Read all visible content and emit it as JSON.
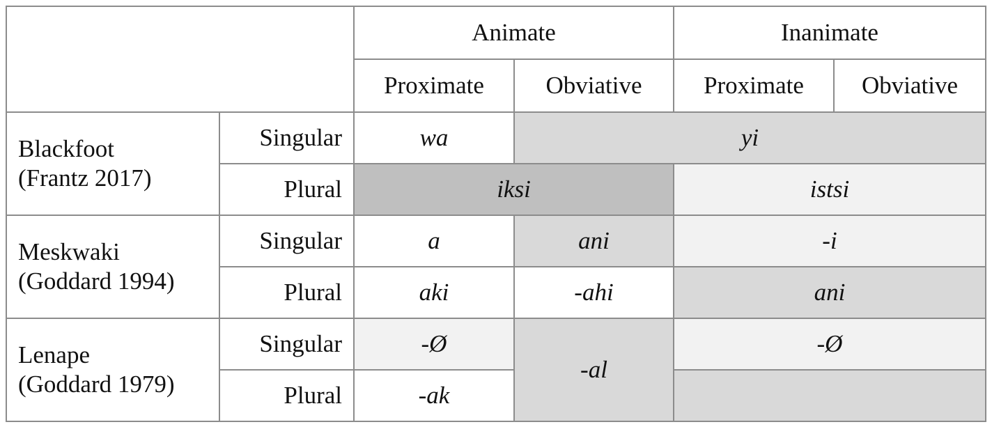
{
  "header": {
    "animate": "Animate",
    "inanimate": "Inanimate",
    "proximate": "Proximate",
    "obviative": "Obviative"
  },
  "languages": [
    {
      "name": "Blackfoot",
      "source": "(Frantz 2017)",
      "singular_label": "Singular",
      "plural_label": "Plural",
      "singular": {
        "animate_proximate": "wa",
        "merged_rest": "yi"
      },
      "plural": {
        "animate": "iksi",
        "inanimate": "istsi"
      }
    },
    {
      "name": "Meskwaki",
      "source": "(Goddard 1994)",
      "singular_label": "Singular",
      "plural_label": "Plural",
      "singular": {
        "animate_proximate": "a",
        "animate_obviative": "ani",
        "inanimate": "-i"
      },
      "plural": {
        "animate_proximate": "aki",
        "animate_obviative": "-ahi",
        "inanimate": "ani"
      }
    },
    {
      "name": "Lenape",
      "source": "(Goddard 1979)",
      "singular_label": "Singular",
      "plural_label": "Plural",
      "singular": {
        "animate_proximate": "-Ø",
        "inanimate": "-Ø"
      },
      "plural": {
        "animate_proximate": "-ak"
      },
      "obviative_merged": "-al"
    }
  ],
  "shading": {
    "white": "#ffffff",
    "light": "#f2f2f2",
    "mid": "#d9d9d9",
    "dark": "#bfbfbf",
    "rule": "#8c8c8c"
  }
}
